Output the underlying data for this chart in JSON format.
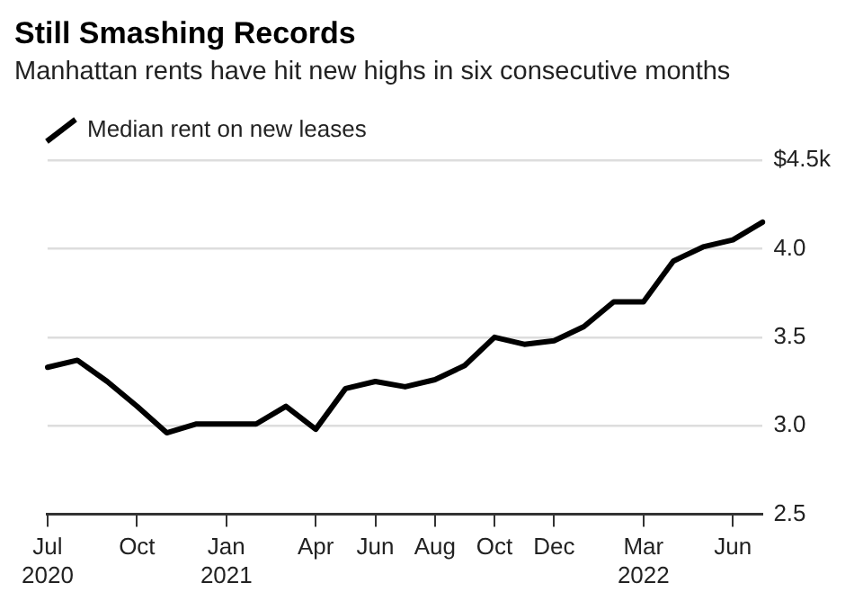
{
  "chart_data": {
    "type": "line",
    "title": "Still Smashing Records",
    "subtitle": "Manhattan rents have hit new highs in six consecutive months",
    "categories": [
      "Jul\n2020",
      null,
      null,
      "Oct",
      null,
      null,
      "Jan\n2021",
      null,
      null,
      "Apr",
      null,
      "Jun",
      null,
      "Aug",
      null,
      "Oct",
      null,
      "Dec",
      null,
      null,
      "Mar\n2022",
      null,
      null,
      "Jun",
      null
    ],
    "series": [
      {
        "name": "Median rent on new leases",
        "color": "#000000",
        "values": [
          3.33,
          3.37,
          3.25,
          3.11,
          2.96,
          3.01,
          3.01,
          3.01,
          3.11,
          2.98,
          3.21,
          3.25,
          3.22,
          3.26,
          3.34,
          3.5,
          3.46,
          3.48,
          3.56,
          3.7,
          3.7,
          3.93,
          4.01,
          4.05,
          4.15
        ]
      }
    ],
    "ylim": [
      2.5,
      4.5
    ],
    "yticks": [
      2.5,
      {
        "value": 3,
        "label": "3.0"
      },
      3.5,
      {
        "value": 4,
        "label": "4.0"
      },
      {
        "value": 4.5,
        "label": "$4.5k"
      }
    ],
    "grid": "y",
    "legend": "top left",
    "marker": "none",
    "line_style": "solid"
  }
}
